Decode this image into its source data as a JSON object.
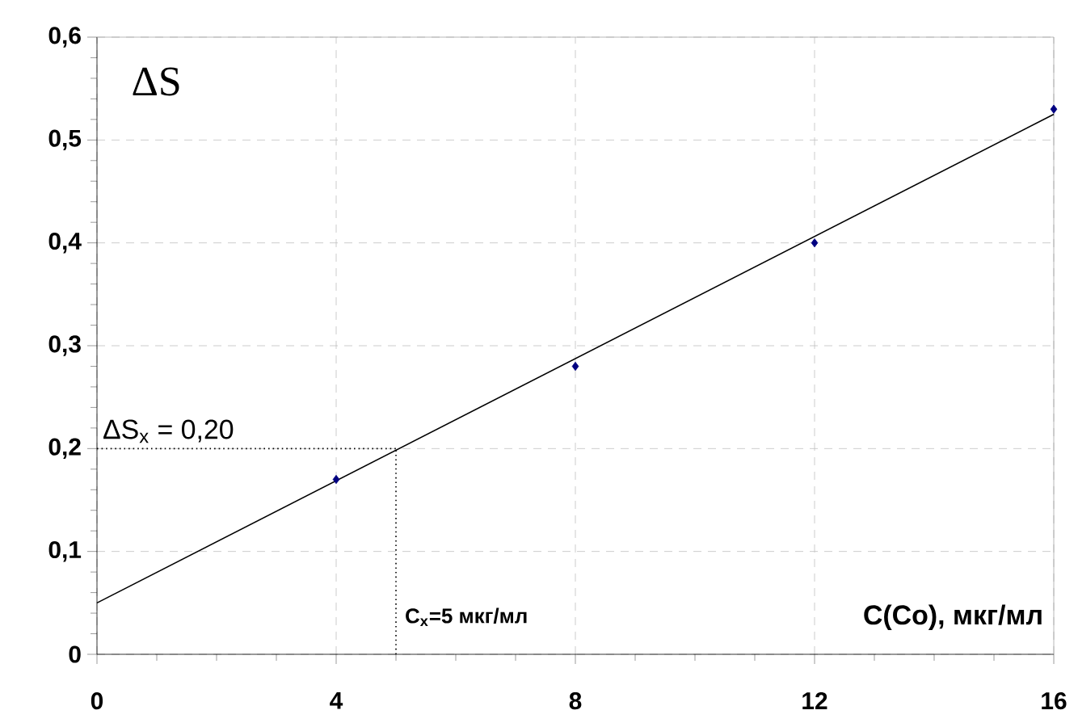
{
  "chart_data": {
    "type": "scatter",
    "xlabel": "C(Co), мкг/мл",
    "ylabel": "ΔS",
    "xlim": [
      0,
      16
    ],
    "xticks": [
      0,
      4,
      8,
      12,
      16
    ],
    "ylim": [
      0,
      0.6
    ],
    "yticks": [
      0,
      {
        "value": 0.1,
        "label": "0,1"
      },
      {
        "value": 0.2,
        "label": "0,2"
      },
      {
        "value": 0.3,
        "label": "0,3"
      },
      {
        "value": 0.4,
        "label": "0,4"
      },
      {
        "value": 0.5,
        "label": "0,5"
      },
      {
        "value": 0.6,
        "label": "0,6"
      }
    ],
    "grid": true,
    "marker": "diamond",
    "series": [
      {
        "color": "#000080",
        "x": [
          4,
          8,
          12,
          16
        ],
        "values": [
          0.17,
          0.28,
          0.4,
          0.53
        ]
      },
      {
        "type": "line",
        "color": "#000000",
        "marker": "none",
        "x": [
          0,
          16
        ],
        "values": [
          0.05,
          0.525
        ]
      }
    ],
    "ref_lines": [
      {
        "axis": "y",
        "value": 0.2,
        "label": "ΔS$_{x}$ = 0,20",
        "line_style": "dotted",
        "color": "#000000"
      },
      {
        "axis": "x",
        "value": 5,
        "label": "C$_{x}$=5 мкг/мл",
        "line_style": "dotted",
        "color": "#000000"
      }
    ]
  }
}
